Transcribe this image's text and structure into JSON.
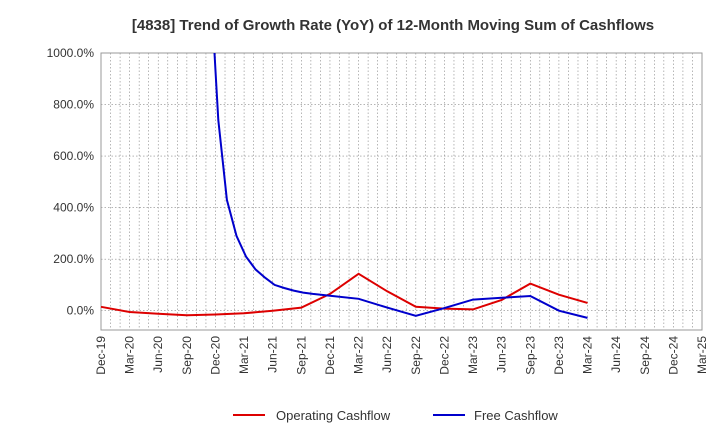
{
  "chart_data": {
    "type": "line",
    "title": "[4838]  Trend of Growth Rate (YoY) of 12-Month Moving Sum of Cashflows",
    "xlabel": "",
    "ylabel": "",
    "x_tick_labels": [
      "Dec-19",
      "Mar-20",
      "Jun-20",
      "Sep-20",
      "Dec-20",
      "Mar-21",
      "Jun-21",
      "Sep-21",
      "Dec-21",
      "Mar-22",
      "Jun-22",
      "Sep-22",
      "Dec-22",
      "Mar-23",
      "Jun-23",
      "Sep-23",
      "Dec-23",
      "Mar-24",
      "Jun-24",
      "Sep-24",
      "Dec-24",
      "Mar-25"
    ],
    "y_ticks": [
      0,
      200,
      400,
      600,
      800,
      1000
    ],
    "y_tick_labels": [
      "0.0%",
      "200.0%",
      "400.0%",
      "600.0%",
      "800.0%",
      "1000.0%"
    ],
    "ylim": [
      -75,
      1000
    ],
    "x_range_months": [
      0,
      63
    ],
    "grid": true,
    "legend_position": "bottom",
    "series": [
      {
        "name": "Operating Cashflow",
        "color": "#dd0000",
        "points": [
          [
            0,
            15
          ],
          [
            3,
            -5
          ],
          [
            6,
            -12
          ],
          [
            9,
            -18
          ],
          [
            12,
            -15
          ],
          [
            15,
            -10
          ],
          [
            18,
            0
          ],
          [
            21,
            12
          ],
          [
            24,
            65
          ],
          [
            27,
            143
          ],
          [
            30,
            75
          ],
          [
            33,
            15
          ],
          [
            36,
            8
          ],
          [
            39,
            5
          ],
          [
            42,
            42
          ],
          [
            45,
            105
          ],
          [
            48,
            62
          ],
          [
            51,
            30
          ]
        ]
      },
      {
        "name": "Free Cashflow",
        "color": "#0000cc",
        "points": [
          [
            11.9,
            1000
          ],
          [
            12,
            930
          ],
          [
            12.3,
            740
          ],
          [
            13.2,
            430
          ],
          [
            14.2,
            290
          ],
          [
            15.2,
            210
          ],
          [
            16.2,
            160
          ],
          [
            17.2,
            128
          ],
          [
            18.2,
            100
          ],
          [
            19.2,
            88
          ],
          [
            20.2,
            78
          ],
          [
            21.2,
            70
          ],
          [
            22.2,
            65
          ],
          [
            24,
            58
          ],
          [
            27,
            46
          ],
          [
            30,
            12
          ],
          [
            33,
            -20
          ],
          [
            36,
            10
          ],
          [
            39,
            43
          ],
          [
            42,
            50
          ],
          [
            45,
            57
          ],
          [
            48,
            0
          ],
          [
            51,
            -28
          ]
        ]
      }
    ]
  }
}
